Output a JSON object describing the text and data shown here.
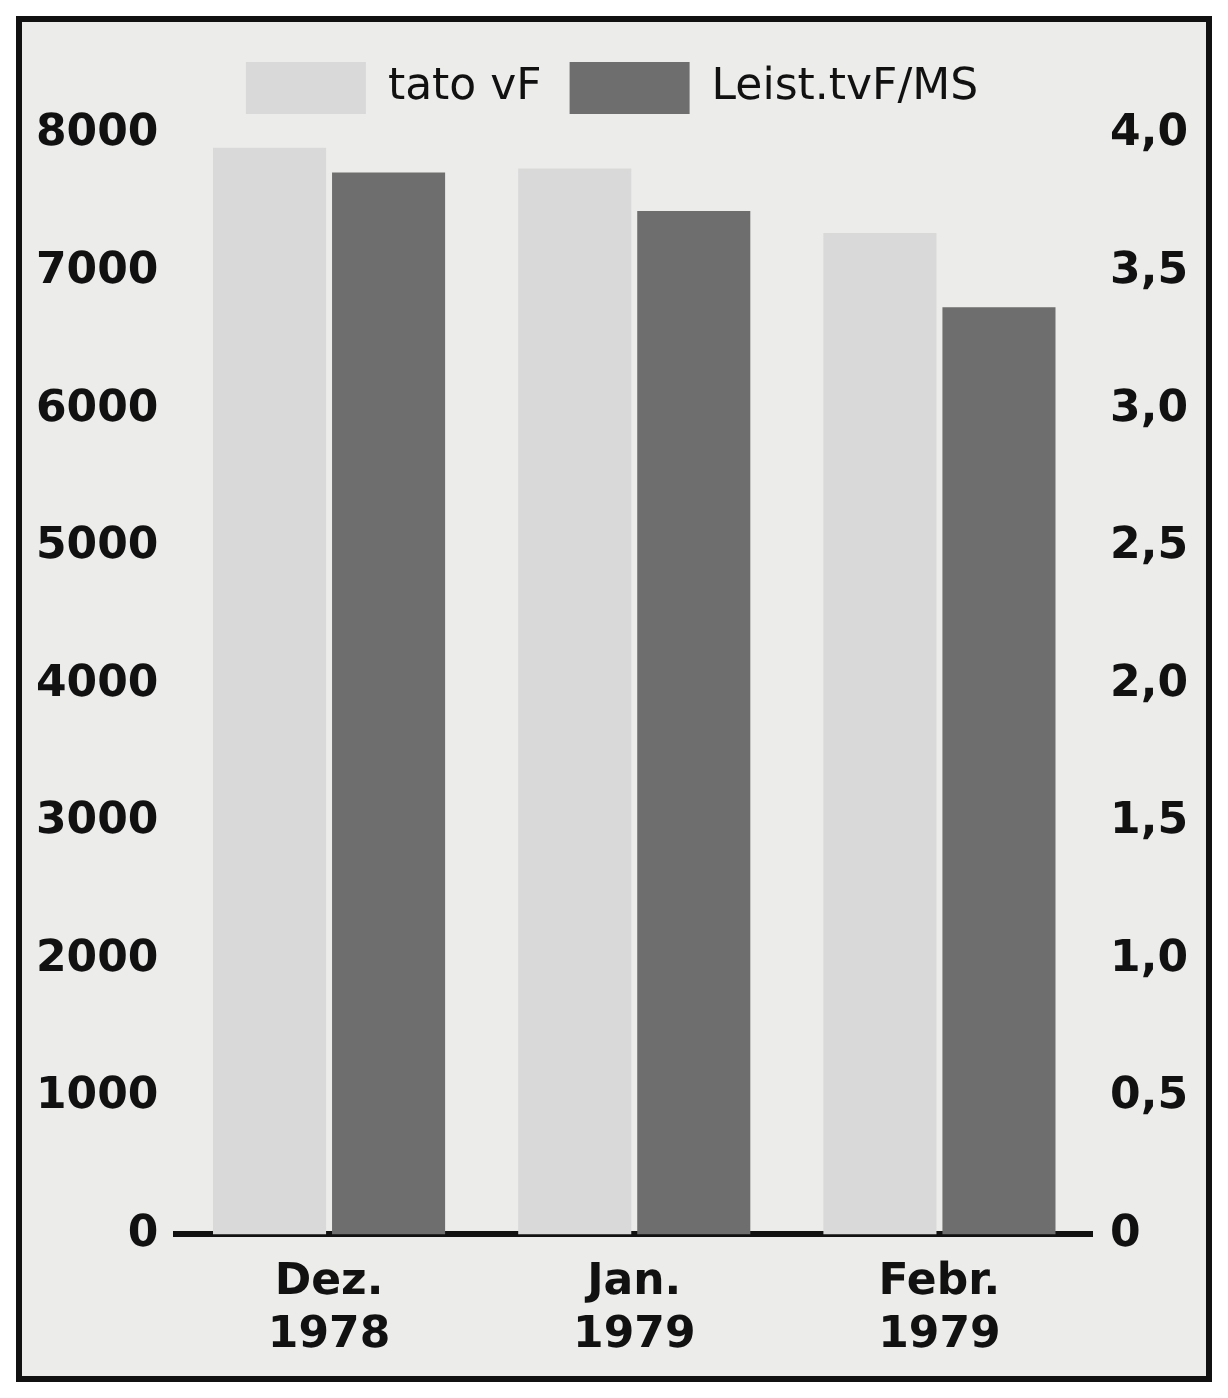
{
  "chart_data": {
    "type": "bar",
    "categories": [
      "Dez.\n1978",
      "Jan.\n1979",
      "Febr.\n1979"
    ],
    "series": [
      {
        "name": "tato vF",
        "color": "#d9d9d9",
        "values": [
          7900,
          7750,
          7280
        ]
      },
      {
        "name": "Leist.tvF/MS",
        "color": "#6e6e6e",
        "values": [
          3.86,
          3.72,
          3.37
        ],
        "axis": "y2"
      }
    ],
    "ylim": [
      0,
      8000
    ],
    "yticks": [
      0,
      1000,
      2000,
      3000,
      4000,
      5000,
      6000,
      7000,
      8000
    ],
    "y2lim": [
      0,
      4
    ],
    "y2ticks": [
      0,
      {
        "value": 0.5,
        "label": "0,5"
      },
      {
        "value": 1,
        "label": "1,0"
      },
      {
        "value": 1.5,
        "label": "1,5"
      },
      {
        "value": 2,
        "label": "2,0"
      },
      {
        "value": 2.5,
        "label": "2,5"
      },
      {
        "value": 3,
        "label": "3,0"
      },
      {
        "value": 3.5,
        "label": "3,5"
      },
      {
        "value": 4,
        "label": "4,0"
      }
    ],
    "grid": false,
    "legend": "top"
  }
}
